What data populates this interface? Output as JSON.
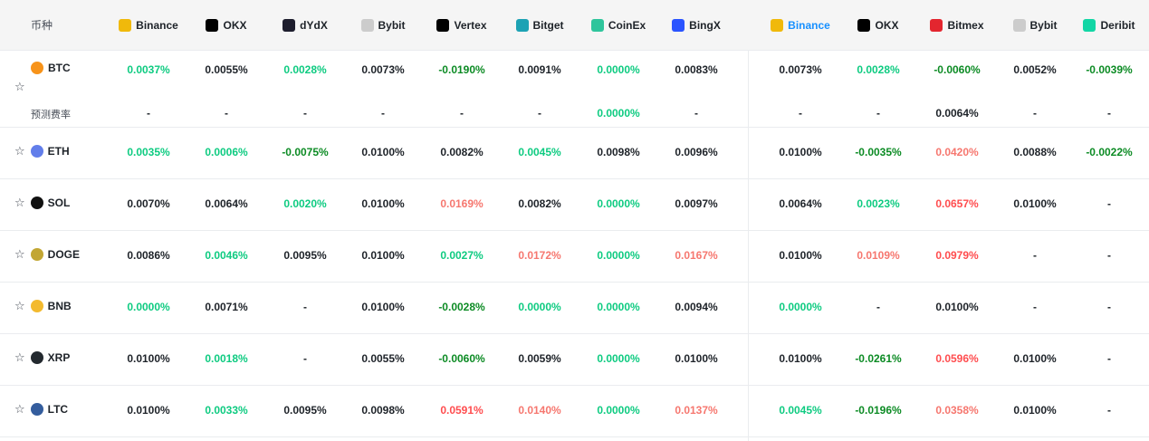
{
  "header": {
    "coin_label": "币种",
    "exchanges": [
      {
        "name": "Binance",
        "icon": "binance-icon",
        "color": "#f0b90b",
        "active": false
      },
      {
        "name": "OKX",
        "icon": "okx-icon",
        "color": "#000000",
        "active": false
      },
      {
        "name": "dYdX",
        "icon": "dydx-icon",
        "color": "#1e1e2e",
        "active": false
      },
      {
        "name": "Bybit",
        "icon": "bybit-icon",
        "color": "#cccccc",
        "active": false
      },
      {
        "name": "Vertex",
        "icon": "vertex-icon",
        "color": "#000000",
        "active": false
      },
      {
        "name": "Bitget",
        "icon": "bitget-icon",
        "color": "#1da2b4",
        "active": false
      },
      {
        "name": "CoinEx",
        "icon": "coinex-icon",
        "color": "#2fc59c",
        "active": false
      },
      {
        "name": "BingX",
        "icon": "bingx-icon",
        "color": "#2a54ff",
        "active": false
      },
      {
        "name": "Binance",
        "icon": "binance-icon",
        "color": "#f0b90b",
        "active": true
      },
      {
        "name": "OKX",
        "icon": "okx-icon",
        "color": "#000000",
        "active": false
      },
      {
        "name": "Bitmex",
        "icon": "bitmex-icon",
        "color": "#e3262f",
        "active": false
      },
      {
        "name": "Bybit",
        "icon": "bybit-icon",
        "color": "#cccccc",
        "active": false
      },
      {
        "name": "Deribit",
        "icon": "deribit-icon",
        "color": "#12d6a5",
        "active": false
      }
    ]
  },
  "rows": [
    {
      "coin": "BTC",
      "icon": "btc-icon",
      "color": "#f7931a",
      "values": [
        [
          "0.0037%",
          "pos"
        ],
        [
          "0.0055%",
          "dark"
        ],
        [
          "0.0028%",
          "pos"
        ],
        [
          "0.0073%",
          "dark"
        ],
        [
          "-0.0190%",
          "neg"
        ],
        [
          "0.0091%",
          "dark"
        ],
        [
          "0.0000%",
          "pos"
        ],
        [
          "0.0083%",
          "dark"
        ],
        [
          "0.0073%",
          "dark"
        ],
        [
          "0.0028%",
          "pos"
        ],
        [
          "-0.0060%",
          "neg"
        ],
        [
          "0.0052%",
          "dark"
        ],
        [
          "-0.0039%",
          "neg"
        ]
      ],
      "predict_label": "预测费率",
      "predict": [
        [
          "-",
          "dash"
        ],
        [
          "-",
          "dash"
        ],
        [
          "-",
          "dash"
        ],
        [
          "-",
          "dash"
        ],
        [
          "-",
          "dash"
        ],
        [
          "-",
          "dash"
        ],
        [
          "0.0000%",
          "pos"
        ],
        [
          "-",
          "dash"
        ],
        [
          "-",
          "dash"
        ],
        [
          "-",
          "dash"
        ],
        [
          "0.0064%",
          "dark"
        ],
        [
          "-",
          "dash"
        ],
        [
          "-",
          "dash"
        ]
      ]
    },
    {
      "coin": "ETH",
      "icon": "eth-icon",
      "color": "#627eea",
      "values": [
        [
          "0.0035%",
          "pos"
        ],
        [
          "0.0006%",
          "pos"
        ],
        [
          "-0.0075%",
          "neg"
        ],
        [
          "0.0100%",
          "dark"
        ],
        [
          "0.0082%",
          "dark"
        ],
        [
          "0.0045%",
          "pos"
        ],
        [
          "0.0098%",
          "dark"
        ],
        [
          "0.0096%",
          "dark"
        ],
        [
          "0.0100%",
          "dark"
        ],
        [
          "-0.0035%",
          "neg"
        ],
        [
          "0.0420%",
          "pink"
        ],
        [
          "0.0088%",
          "dark"
        ],
        [
          "-0.0022%",
          "neg"
        ]
      ]
    },
    {
      "coin": "SOL",
      "icon": "sol-icon",
      "color": "#111111",
      "values": [
        [
          "0.0070%",
          "dark"
        ],
        [
          "0.0064%",
          "dark"
        ],
        [
          "0.0020%",
          "pos"
        ],
        [
          "0.0100%",
          "dark"
        ],
        [
          "0.0169%",
          "pink"
        ],
        [
          "0.0082%",
          "dark"
        ],
        [
          "0.0000%",
          "pos"
        ],
        [
          "0.0097%",
          "dark"
        ],
        [
          "0.0064%",
          "dark"
        ],
        [
          "0.0023%",
          "pos"
        ],
        [
          "0.0657%",
          "red"
        ],
        [
          "0.0100%",
          "dark"
        ],
        [
          "-",
          "dash"
        ]
      ]
    },
    {
      "coin": "DOGE",
      "icon": "doge-icon",
      "color": "#c2a633",
      "values": [
        [
          "0.0086%",
          "dark"
        ],
        [
          "0.0046%",
          "pos"
        ],
        [
          "0.0095%",
          "dark"
        ],
        [
          "0.0100%",
          "dark"
        ],
        [
          "0.0027%",
          "pos"
        ],
        [
          "0.0172%",
          "pink"
        ],
        [
          "0.0000%",
          "pos"
        ],
        [
          "0.0167%",
          "pink"
        ],
        [
          "0.0100%",
          "dark"
        ],
        [
          "0.0109%",
          "pink"
        ],
        [
          "0.0979%",
          "red"
        ],
        [
          "-",
          "dash"
        ],
        [
          "-",
          "dash"
        ]
      ]
    },
    {
      "coin": "BNB",
      "icon": "bnb-icon",
      "color": "#f3ba2f",
      "values": [
        [
          "0.0000%",
          "pos"
        ],
        [
          "0.0071%",
          "dark"
        ],
        [
          "-",
          "dash"
        ],
        [
          "0.0100%",
          "dark"
        ],
        [
          "-0.0028%",
          "neg"
        ],
        [
          "0.0000%",
          "pos"
        ],
        [
          "0.0000%",
          "pos"
        ],
        [
          "0.0094%",
          "dark"
        ],
        [
          "0.0000%",
          "pos"
        ],
        [
          "-",
          "dash"
        ],
        [
          "0.0100%",
          "dark"
        ],
        [
          "-",
          "dash"
        ],
        [
          "-",
          "dash"
        ]
      ]
    },
    {
      "coin": "XRP",
      "icon": "xrp-icon",
      "color": "#23292f",
      "values": [
        [
          "0.0100%",
          "dark"
        ],
        [
          "0.0018%",
          "pos"
        ],
        [
          "-",
          "dash"
        ],
        [
          "0.0055%",
          "dark"
        ],
        [
          "-0.0060%",
          "neg"
        ],
        [
          "0.0059%",
          "dark"
        ],
        [
          "0.0000%",
          "pos"
        ],
        [
          "0.0100%",
          "dark"
        ],
        [
          "0.0100%",
          "dark"
        ],
        [
          "-0.0261%",
          "neg"
        ],
        [
          "0.0596%",
          "red"
        ],
        [
          "0.0100%",
          "dark"
        ],
        [
          "-",
          "dash"
        ]
      ]
    },
    {
      "coin": "LTC",
      "icon": "ltc-icon",
      "color": "#345d9d",
      "values": [
        [
          "0.0100%",
          "dark"
        ],
        [
          "0.0033%",
          "pos"
        ],
        [
          "0.0095%",
          "dark"
        ],
        [
          "0.0098%",
          "dark"
        ],
        [
          "0.0591%",
          "red"
        ],
        [
          "0.0140%",
          "pink"
        ],
        [
          "0.0000%",
          "pos"
        ],
        [
          "0.0137%",
          "pink"
        ],
        [
          "0.0045%",
          "pos"
        ],
        [
          "-0.0196%",
          "neg"
        ],
        [
          "0.0358%",
          "pink"
        ],
        [
          "0.0100%",
          "dark"
        ],
        [
          "-",
          "dash"
        ]
      ]
    }
  ],
  "star_glyph": "☆"
}
